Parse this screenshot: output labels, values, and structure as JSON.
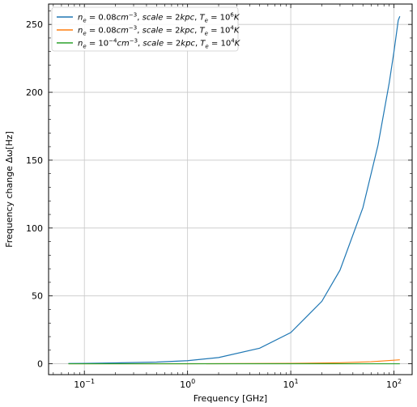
{
  "chart_data": {
    "type": "line",
    "xlabel": "Frequency  [GHz]",
    "ylabel": "Frequency change Δω[Hz]",
    "xscale": "log",
    "xlim": [
      0.045,
      150
    ],
    "ylim": [
      -8,
      265
    ],
    "xticks": [
      {
        "value": 0.1,
        "base": "10",
        "exp": "−1"
      },
      {
        "value": 1,
        "base": "10",
        "exp": "0"
      },
      {
        "value": 10,
        "base": "10",
        "exp": "1"
      },
      {
        "value": 100,
        "base": "10",
        "exp": "2"
      }
    ],
    "yticks": [
      0,
      50,
      100,
      150,
      200,
      250
    ],
    "grid": true,
    "legend_position": "top-left",
    "series": [
      {
        "name": "n_e = 0.08cm^-3, scale = 2kpc, T_e = 10^6 K",
        "legend": {
          "ne": "0.08",
          "ne_exp": "−3",
          "Te_exp": "6"
        },
        "color": "#1f77b4",
        "x": [
          0.07,
          0.1,
          0.2,
          0.5,
          1,
          2,
          5,
          10,
          20,
          30,
          50,
          70,
          90,
          100,
          110,
          114
        ],
        "y": [
          0.2,
          0.31,
          0.63,
          1.23,
          2.3,
          4.6,
          11.5,
          23,
          46,
          69,
          115,
          161,
          207,
          230,
          253,
          256
        ]
      },
      {
        "name": "n_e = 0.08cm^-3, scale = 2kpc, T_e = 10^4 K",
        "legend": {
          "ne": "0.08",
          "ne_exp": "−3",
          "Te_exp": "4"
        },
        "color": "#ff7f0e",
        "x": [
          0.07,
          1,
          10,
          30,
          60,
          114
        ],
        "y": [
          0.0,
          0.03,
          0.25,
          0.75,
          1.5,
          2.9
        ]
      },
      {
        "name": "n_e = 10^-4 cm^-3, scale = 2kpc, T_e = 10^4 K",
        "legend": {
          "ne": "10",
          "ne_base_exp": "−4",
          "ne_exp": "−3",
          "Te_exp": "4"
        },
        "color": "#2ca02c",
        "x": [
          0.07,
          114
        ],
        "y": [
          0.0,
          0.01
        ]
      }
    ]
  }
}
